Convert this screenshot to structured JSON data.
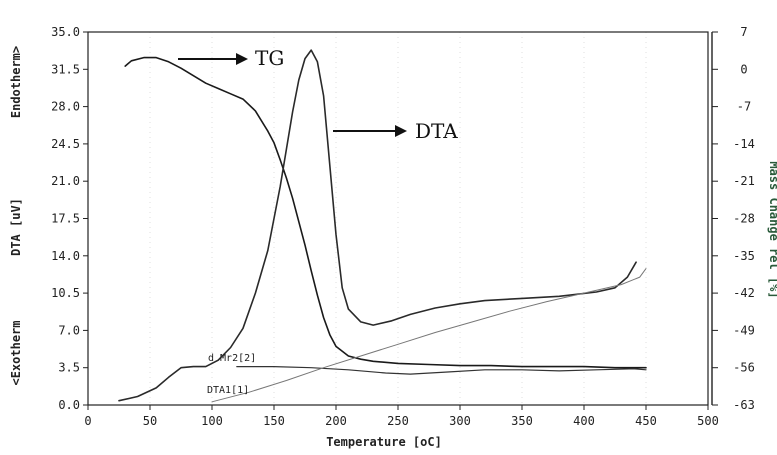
{
  "chart_data": {
    "type": "line",
    "xlabel": "Temperature [oC]",
    "ylabel_left_top": "Endotherm>",
    "ylabel_left_mid": "DTA [uV]",
    "ylabel_left_bottom": "<Exotherm",
    "ylabel_right": "Mass Change rel [%]",
    "xlim": [
      0,
      500
    ],
    "ylim_left": [
      0.0,
      35.0
    ],
    "ylim_right": [
      -63,
      7
    ],
    "x_ticks": [
      "0",
      "50",
      "100",
      "150",
      "200",
      "250",
      "300",
      "350",
      "400",
      "450",
      "500"
    ],
    "y_left_ticks": [
      "0.0",
      "3.5",
      "7.0",
      "10.5",
      "14.0",
      "17.5",
      "21.0",
      "24.5",
      "28.0",
      "31.5",
      "35.0"
    ],
    "y_right_ticks": [
      "7",
      "0",
      "-7",
      "-14",
      "-21",
      "-28",
      "-35",
      "-42",
      "-49",
      "-56",
      "-63"
    ],
    "annotations": {
      "tg": "TG",
      "dta": "DTA",
      "dmr": "d Mr2[2]",
      "dta1": "DTA1[1]"
    },
    "series": [
      {
        "key": "tg",
        "axis": "left",
        "x": [
          30,
          35,
          45,
          55,
          65,
          75,
          85,
          95,
          105,
          115,
          125,
          135,
          145,
          150,
          155,
          160,
          165,
          170,
          175,
          180,
          185,
          190,
          195,
          200,
          210,
          220,
          230,
          250,
          275,
          300,
          325,
          350,
          375,
          400,
          425,
          450
        ],
        "y": [
          31.8,
          32.3,
          32.6,
          32.6,
          32.2,
          31.6,
          30.9,
          30.2,
          29.7,
          29.2,
          28.7,
          27.6,
          25.7,
          24.6,
          23.0,
          21.3,
          19.4,
          17.2,
          15.0,
          12.6,
          10.3,
          8.2,
          6.6,
          5.5,
          4.6,
          4.3,
          4.1,
          3.9,
          3.8,
          3.7,
          3.7,
          3.6,
          3.6,
          3.6,
          3.5,
          3.5
        ]
      },
      {
        "key": "dta",
        "axis": "left",
        "x": [
          25,
          40,
          55,
          65,
          75,
          85,
          95,
          105,
          115,
          125,
          135,
          145,
          150,
          155,
          160,
          165,
          170,
          175,
          180,
          185,
          190,
          195,
          200,
          205,
          210,
          220,
          230,
          245,
          260,
          280,
          300,
          320,
          350,
          380,
          410,
          425,
          435,
          442
        ],
        "y": [
          0.4,
          0.8,
          1.6,
          2.6,
          3.5,
          3.6,
          3.6,
          4.2,
          5.4,
          7.2,
          10.5,
          14.5,
          17.5,
          20.5,
          24.0,
          27.5,
          30.5,
          32.5,
          33.3,
          32.2,
          29.0,
          22.5,
          16.0,
          11.0,
          9.0,
          7.8,
          7.5,
          7.9,
          8.5,
          9.1,
          9.5,
          9.8,
          10.0,
          10.2,
          10.6,
          11.0,
          12.0,
          13.4
        ]
      },
      {
        "key": "dmr",
        "axis": "left",
        "x": [
          120,
          150,
          180,
          210,
          240,
          260,
          290,
          320,
          350,
          380,
          410,
          440,
          450
        ],
        "y": [
          3.6,
          3.6,
          3.5,
          3.3,
          3.0,
          2.9,
          3.1,
          3.3,
          3.3,
          3.2,
          3.3,
          3.4,
          3.3
        ]
      },
      {
        "key": "dta1",
        "axis": "left",
        "x": [
          100,
          130,
          160,
          190,
          220,
          250,
          280,
          310,
          340,
          370,
          400,
          430,
          445,
          450
        ],
        "y": [
          0.3,
          1.2,
          2.3,
          3.5,
          4.6,
          5.7,
          6.8,
          7.8,
          8.8,
          9.7,
          10.5,
          11.3,
          12.0,
          12.8
        ]
      }
    ]
  }
}
